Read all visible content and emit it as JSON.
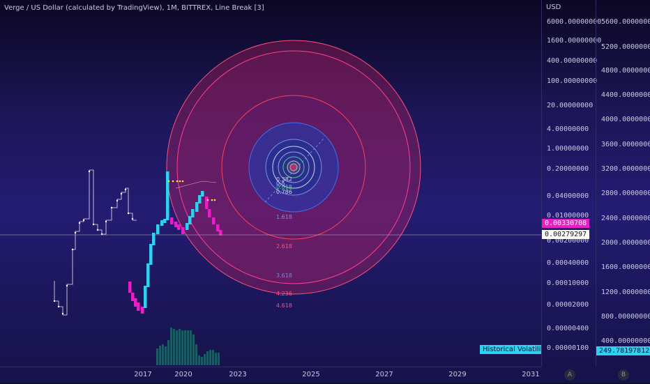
{
  "header": {
    "title": "Verge / US Dollar (calculated by TradingView), 1M, BITTREX, Line Break [3]"
  },
  "price_axis_left": {
    "unit": "USD",
    "ticks": [
      "6000.00000000",
      "1600.00000000",
      "400.00000000",
      "100.00000000",
      "20.00000000",
      "4.00000000",
      "1.00000000",
      "0.20000000",
      "0.04000000",
      "0.01000000",
      "0.00200000",
      "0.00040000",
      "0.00010000",
      "0.00002000",
      "0.00000400",
      "0.00000100"
    ],
    "last_price": "0.00330708",
    "crosshair_price": "0.00279297"
  },
  "price_axis_right": {
    "ticks": [
      "5600.00000000",
      "5200.00000000",
      "4800.00000000",
      "4400.00000000",
      "4000.00000000",
      "3600.00000000",
      "3200.00000000",
      "2800.00000000",
      "2400.00000000",
      "2000.00000000",
      "1600.00000000",
      "1200.00000000",
      "800.00000000",
      "400.00000000"
    ],
    "volatility_value": "249.78197812"
  },
  "indicator": {
    "label": "Historical Volatility"
  },
  "time_axis": {
    "years": [
      "2017",
      "2020",
      "2023",
      "2025",
      "2027",
      "2029",
      "2031"
    ]
  },
  "scale_buttons": {
    "left": "A",
    "right": "B"
  },
  "fib_circle_labels": [
    "0.382",
    "0.5",
    "0.618",
    "0.786",
    "1.618",
    "2.618",
    "3.618",
    "4.236",
    "4.618"
  ],
  "colors": {
    "up_bar": "#2fd1f0",
    "down_bar": "#e91ec7",
    "volume": "#1e5a66",
    "line": "#e8e8f0"
  }
}
